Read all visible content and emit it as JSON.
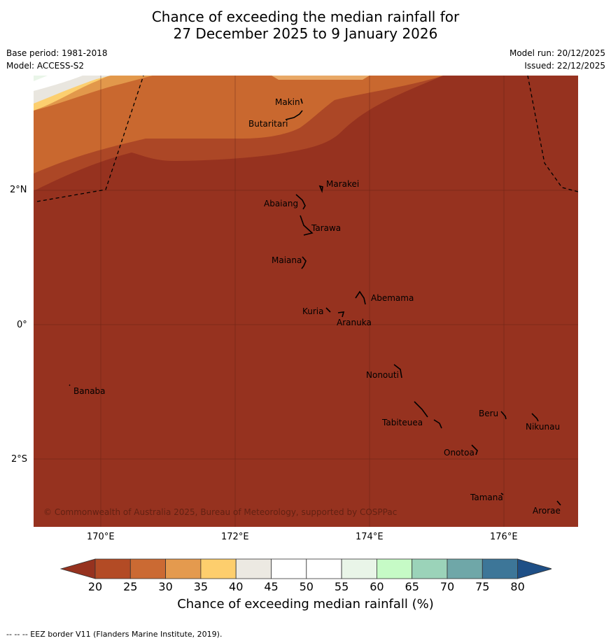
{
  "header": {
    "title_line1": "Chance of exceeding the median rainfall for",
    "title_line2": "27 December 2025 to 9 January 2026",
    "base_period": "Base period: 1981-2018",
    "model": "Model: ACCESS-S2",
    "model_run": "Model run: 20/12/2025",
    "issued": "Issued: 22/12/2025"
  },
  "map": {
    "copyright": "© Commonwealth of Australia 2025, Bureau of Meteorology, supported by COSPPac",
    "x_ticks": [
      "170°E",
      "172°E",
      "174°E",
      "176°E"
    ],
    "y_ticks": [
      "2°N",
      "0°",
      "2°S"
    ],
    "places": [
      "Makin",
      "Butaritari",
      "Marakei",
      "Abaiang",
      "Tarawa",
      "Maiana",
      "Abemama",
      "Kuria",
      "Aranuka",
      "Nonouti",
      "Banaba",
      "Beru",
      "Nikunau",
      "Tabiteuea",
      "Onotoa",
      "Tamana",
      "Arorae"
    ]
  },
  "colorbar": {
    "labels": [
      "20",
      "25",
      "30",
      "35",
      "40",
      "45",
      "50",
      "55",
      "60",
      "65",
      "70",
      "75",
      "80"
    ],
    "colors": [
      "#96321f",
      "#b34b25",
      "#cb6a33",
      "#e49a4e",
      "#fdce6d",
      "#ece9e2",
      "#ffffff",
      "#ffffff",
      "#e9f5e8",
      "#c6fbc6",
      "#9bd3b9",
      "#6fa7a8",
      "#3d7698",
      "#1e4f86"
    ],
    "title": "Chance of exceeding median rainfall (%)"
  },
  "footer": "--  --  -- EEZ border V11 (Flanders Marine Institute, 2019)."
}
